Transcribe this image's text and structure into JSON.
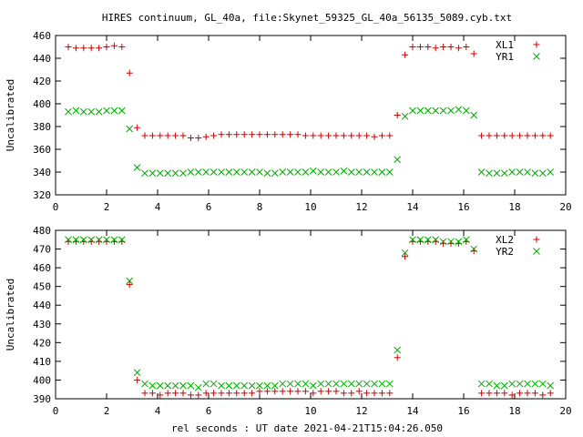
{
  "figure_title": "HIRES continuum, GL_40a, file:Skynet_59325_GL_40a_56135_5089.cyb.txt",
  "xlabel_bottom": "rel seconds : UT date 2021-04-21T15:04:26.050",
  "colors": {
    "red": "#cc0000",
    "green": "#00aa00",
    "axis": "#000000"
  },
  "chart_data": [
    {
      "type": "scatter",
      "ylabel": "Uncalibrated",
      "xlim": [
        0,
        20
      ],
      "ylim": [
        320,
        460
      ],
      "xticks": [
        0,
        2,
        4,
        6,
        8,
        10,
        12,
        14,
        16,
        18,
        20
      ],
      "yticks": [
        320,
        340,
        360,
        380,
        400,
        420,
        440,
        460
      ],
      "grid": false,
      "legend_position": "top-right",
      "series": [
        {
          "name": "XL1",
          "marker": "plus",
          "color": "#cc0000",
          "x": [
            0.5,
            0.8,
            1.1,
            1.4,
            1.7,
            2.0,
            2.3,
            2.6,
            2.9,
            3.2,
            3.5,
            3.8,
            4.1,
            4.4,
            4.7,
            5.0,
            5.3,
            5.6,
            5.9,
            6.2,
            6.5,
            6.8,
            7.1,
            7.4,
            7.7,
            8.0,
            8.3,
            8.6,
            8.9,
            9.2,
            9.5,
            9.8,
            10.1,
            10.4,
            10.7,
            11.0,
            11.3,
            11.6,
            11.9,
            12.2,
            12.5,
            12.8,
            13.1,
            13.4,
            13.7,
            14.0,
            14.3,
            14.6,
            14.9,
            15.2,
            15.5,
            15.8,
            16.1,
            16.4,
            16.7,
            17.0,
            17.3,
            17.6,
            17.9,
            18.2,
            18.5,
            18.8,
            19.1,
            19.4
          ],
          "y": [
            450,
            449,
            449,
            449,
            449,
            450,
            451,
            450,
            427,
            379,
            372,
            372,
            372,
            372,
            372,
            372,
            370,
            370,
            371,
            372,
            373,
            373,
            373,
            373,
            373,
            373,
            373,
            373,
            373,
            373,
            373,
            372,
            372,
            372,
            372,
            372,
            372,
            372,
            372,
            372,
            371,
            372,
            372,
            390,
            443,
            450,
            450,
            450,
            449,
            450,
            450,
            449,
            450,
            444,
            372,
            372,
            372,
            372,
            372,
            372,
            372,
            372,
            372,
            372
          ]
        },
        {
          "name": "YR1",
          "marker": "cross",
          "color": "#00aa00",
          "x": [
            0.5,
            0.8,
            1.1,
            1.4,
            1.7,
            2.0,
            2.3,
            2.6,
            2.9,
            3.2,
            3.5,
            3.8,
            4.1,
            4.4,
            4.7,
            5.0,
            5.3,
            5.6,
            5.9,
            6.2,
            6.5,
            6.8,
            7.1,
            7.4,
            7.7,
            8.0,
            8.3,
            8.6,
            8.9,
            9.2,
            9.5,
            9.8,
            10.1,
            10.4,
            10.7,
            11.0,
            11.3,
            11.6,
            11.9,
            12.2,
            12.5,
            12.8,
            13.1,
            13.4,
            13.7,
            14.0,
            14.3,
            14.6,
            14.9,
            15.2,
            15.5,
            15.8,
            16.1,
            16.4,
            16.7,
            17.0,
            17.3,
            17.6,
            17.9,
            18.2,
            18.5,
            18.8,
            19.1,
            19.4
          ],
          "y": [
            393,
            394,
            393,
            393,
            393,
            394,
            394,
            394,
            378,
            344,
            339,
            339,
            339,
            339,
            339,
            339,
            340,
            340,
            340,
            340,
            340,
            340,
            340,
            340,
            340,
            340,
            339,
            339,
            340,
            340,
            340,
            340,
            341,
            340,
            340,
            340,
            341,
            340,
            340,
            340,
            340,
            340,
            340,
            351,
            389,
            394,
            394,
            394,
            394,
            394,
            394,
            395,
            394,
            390,
            340,
            339,
            339,
            339,
            340,
            340,
            340,
            339,
            339,
            340
          ]
        }
      ]
    },
    {
      "type": "scatter",
      "ylabel": "Uncalibrated",
      "xlabel": "rel seconds : UT date 2021-04-21T15:04:26.050",
      "xlim": [
        0,
        20
      ],
      "ylim": [
        390,
        480
      ],
      "xticks": [
        0,
        2,
        4,
        6,
        8,
        10,
        12,
        14,
        16,
        18,
        20
      ],
      "yticks": [
        390,
        400,
        410,
        420,
        430,
        440,
        450,
        460,
        470,
        480
      ],
      "grid": false,
      "legend_position": "top-right",
      "series": [
        {
          "name": "XL2",
          "marker": "plus",
          "color": "#cc0000",
          "x": [
            0.5,
            0.8,
            1.1,
            1.4,
            1.7,
            2.0,
            2.3,
            2.6,
            2.9,
            3.2,
            3.5,
            3.8,
            4.1,
            4.4,
            4.7,
            5.0,
            5.3,
            5.6,
            5.9,
            6.2,
            6.5,
            6.8,
            7.1,
            7.4,
            7.7,
            8.0,
            8.3,
            8.6,
            8.9,
            9.2,
            9.5,
            9.8,
            10.1,
            10.4,
            10.7,
            11.0,
            11.3,
            11.6,
            11.9,
            12.2,
            12.5,
            12.8,
            13.1,
            13.4,
            13.7,
            14.0,
            14.3,
            14.6,
            14.9,
            15.2,
            15.5,
            15.8,
            16.1,
            16.4,
            16.7,
            17.0,
            17.3,
            17.6,
            17.9,
            18.2,
            18.5,
            18.8,
            19.1,
            19.4
          ],
          "y": [
            474,
            474,
            474,
            474,
            474,
            474,
            474,
            474,
            451,
            400,
            393,
            393,
            392,
            393,
            393,
            393,
            392,
            392,
            393,
            393,
            393,
            393,
            393,
            393,
            393,
            394,
            394,
            394,
            394,
            394,
            394,
            394,
            393,
            394,
            394,
            394,
            393,
            393,
            394,
            393,
            393,
            393,
            393,
            412,
            466,
            474,
            474,
            474,
            474,
            473,
            473,
            473,
            474,
            469,
            393,
            393,
            393,
            393,
            392,
            393,
            393,
            393,
            392,
            393
          ]
        },
        {
          "name": "YR2",
          "marker": "cross",
          "color": "#00aa00",
          "x": [
            0.5,
            0.8,
            1.1,
            1.4,
            1.7,
            2.0,
            2.3,
            2.6,
            2.9,
            3.2,
            3.5,
            3.8,
            4.1,
            4.4,
            4.7,
            5.0,
            5.3,
            5.6,
            5.9,
            6.2,
            6.5,
            6.8,
            7.1,
            7.4,
            7.7,
            8.0,
            8.3,
            8.6,
            8.9,
            9.2,
            9.5,
            9.8,
            10.1,
            10.4,
            10.7,
            11.0,
            11.3,
            11.6,
            11.9,
            12.2,
            12.5,
            12.8,
            13.1,
            13.4,
            13.7,
            14.0,
            14.3,
            14.6,
            14.9,
            15.2,
            15.5,
            15.8,
            16.1,
            16.4,
            16.7,
            17.0,
            17.3,
            17.6,
            17.9,
            18.2,
            18.5,
            18.8,
            19.1,
            19.4
          ],
          "y": [
            475,
            475,
            475,
            475,
            475,
            475,
            475,
            475,
            453,
            404,
            398,
            397,
            397,
            397,
            397,
            397,
            397,
            396,
            398,
            398,
            397,
            397,
            397,
            397,
            397,
            397,
            397,
            397,
            398,
            398,
            398,
            398,
            397,
            398,
            398,
            398,
            398,
            398,
            398,
            398,
            398,
            398,
            398,
            416,
            468,
            475,
            475,
            475,
            475,
            474,
            474,
            474,
            475,
            470,
            398,
            398,
            397,
            397,
            398,
            398,
            398,
            398,
            398,
            397
          ]
        }
      ]
    }
  ]
}
